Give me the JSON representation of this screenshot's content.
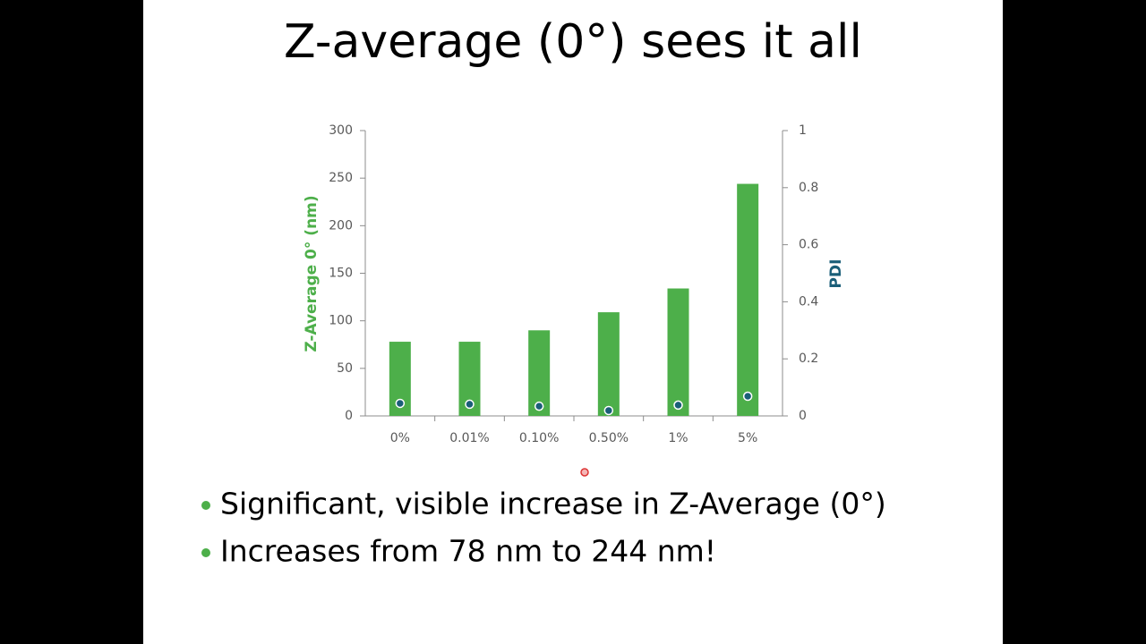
{
  "chart_data": {
    "type": "bar",
    "title": "Z-average (0°) sees it all",
    "categories": [
      "0%",
      "0.01%",
      "0.10%",
      "0.50%",
      "1%",
      "5%"
    ],
    "series": [
      {
        "type": "bar",
        "color": "#4daf4a",
        "values": [
          78,
          78,
          90,
          109,
          134,
          244
        ]
      },
      {
        "type": "scatter",
        "axis": "y2",
        "color": "#1a5e78",
        "values": [
          0.044,
          0.041,
          0.034,
          0.019,
          0.038,
          0.069
        ]
      }
    ],
    "ylabel": "Z-Average 0° (nm)",
    "y2label": "PDI",
    "ylim": [
      0,
      300
    ],
    "yticks": [
      0,
      50,
      100,
      150,
      200,
      250,
      300
    ],
    "y2lim": [
      0,
      1
    ],
    "y2ticks": [
      0,
      0.2,
      0.4,
      0.6,
      0.8,
      1
    ],
    "grid": false
  },
  "bullets": [
    "Significant, visible increase in Z-Average (0°)",
    "Increases from 78 nm to 244 nm!"
  ]
}
